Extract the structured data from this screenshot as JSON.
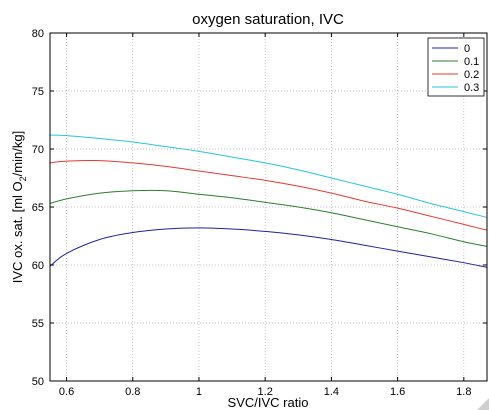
{
  "chart_data": {
    "type": "line",
    "title": "oxygen saturation, IVC",
    "xlabel": "SVC/IVC ratio",
    "ylabel_main": "IVC ox. sat. [ml O",
    "ylabel_sub": "2",
    "ylabel_rest": "/min/kg]",
    "xlim": [
      0.55,
      1.87
    ],
    "ylim": [
      50,
      80
    ],
    "xticks": [
      0.6,
      0.8,
      1,
      1.2,
      1.4,
      1.6,
      1.8
    ],
    "yticks": [
      50,
      55,
      60,
      65,
      70,
      75,
      80
    ],
    "grid": true,
    "legend_position": "top-right",
    "x": [
      0.55,
      0.6,
      0.7,
      0.8,
      0.9,
      1.0,
      1.1,
      1.2,
      1.3,
      1.4,
      1.5,
      1.6,
      1.7,
      1.8,
      1.87
    ],
    "series": [
      {
        "name": "0",
        "color": "#2020a0",
        "values": [
          59.9,
          61.0,
          62.2,
          62.8,
          63.1,
          63.2,
          63.1,
          62.9,
          62.6,
          62.2,
          61.7,
          61.2,
          60.7,
          60.2,
          59.8
        ]
      },
      {
        "name": "0.1",
        "color": "#2e7d32",
        "values": [
          65.3,
          65.7,
          66.2,
          66.4,
          66.4,
          66.1,
          65.8,
          65.4,
          65.0,
          64.5,
          63.9,
          63.3,
          62.7,
          62.0,
          61.6
        ]
      },
      {
        "name": "0.2",
        "color": "#e53935",
        "values": [
          68.8,
          68.95,
          69.0,
          68.8,
          68.5,
          68.1,
          67.7,
          67.3,
          66.8,
          66.2,
          65.5,
          64.9,
          64.2,
          63.5,
          63.0
        ]
      },
      {
        "name": "0.3",
        "color": "#26c6da",
        "values": [
          71.2,
          71.15,
          70.9,
          70.6,
          70.2,
          69.8,
          69.3,
          68.8,
          68.2,
          67.5,
          66.8,
          66.1,
          65.3,
          64.6,
          64.1
        ]
      }
    ]
  }
}
